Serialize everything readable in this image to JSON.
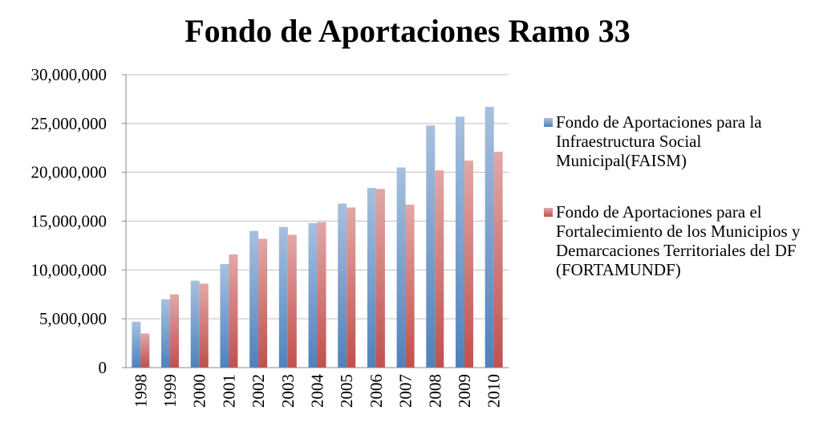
{
  "chart_data": {
    "type": "bar",
    "title": "Fondo de Aportaciones Ramo 33",
    "categories": [
      "1998",
      "1999",
      "2000",
      "2001",
      "2002",
      "2003",
      "2004",
      "2005",
      "2006",
      "2007",
      "2008",
      "2009",
      "2010"
    ],
    "series": [
      {
        "name": "Fondo de Aportaciones para la Infraestructura Social Municipal(FAISM)",
        "color": "#4f81bd",
        "values": [
          4700000,
          7000000,
          8900000,
          10600000,
          14000000,
          14400000,
          14800000,
          16800000,
          18400000,
          20500000,
          24800000,
          25700000,
          26700000
        ]
      },
      {
        "name": "Fondo de Aportaciones para el Fortalecimiento de los Municipios y Demarcaciones Territoriales del DF (FORTAMUNDF)",
        "color": "#c0504d",
        "values": [
          3500000,
          7500000,
          8600000,
          11600000,
          13200000,
          13600000,
          14900000,
          16400000,
          18300000,
          16700000,
          20200000,
          21200000,
          22100000
        ]
      }
    ],
    "ylim": [
      0,
      30000000
    ],
    "yticks": [
      0,
      {
        "value": 5000000,
        "label": "5,000,000"
      },
      {
        "value": 10000000,
        "label": "10,000,000"
      },
      {
        "value": 15000000,
        "label": "15,000,000"
      },
      {
        "value": 20000000,
        "label": "20,000,000"
      },
      {
        "value": 25000000,
        "label": "25,000,000"
      },
      {
        "value": 30000000,
        "label": "30,000,000"
      }
    ],
    "grid": true,
    "legend": "right"
  }
}
